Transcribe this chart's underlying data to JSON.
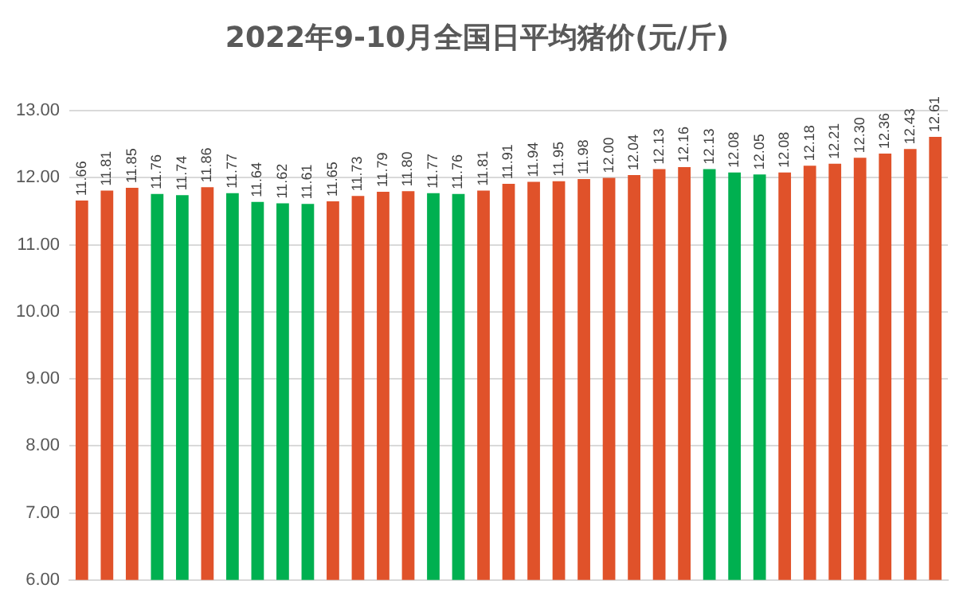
{
  "chart_data": {
    "type": "bar",
    "title": "2022年9-10月全国日平均猪价(元/斤)",
    "categories": [
      null,
      null,
      null,
      null,
      null,
      null,
      null,
      null,
      null,
      null,
      null,
      null,
      null,
      null,
      null,
      null,
      null,
      null,
      null,
      null,
      null,
      null,
      null,
      null,
      null,
      null,
      null,
      null,
      null,
      null,
      null,
      null,
      null,
      null,
      null
    ],
    "values": [
      11.66,
      11.81,
      11.85,
      11.76,
      11.74,
      11.86,
      11.77,
      11.64,
      11.62,
      11.61,
      11.65,
      11.73,
      11.79,
      11.8,
      11.77,
      11.76,
      11.81,
      11.91,
      11.94,
      11.95,
      11.98,
      12.0,
      12.04,
      12.13,
      12.16,
      12.13,
      12.08,
      12.05,
      12.08,
      12.18,
      12.21,
      12.3,
      12.36,
      12.43,
      12.61
    ],
    "colors": [
      "#e0522a",
      "#e0522a",
      "#e0522a",
      "#00b050",
      "#00b050",
      "#e0522a",
      "#00b050",
      "#00b050",
      "#00b050",
      "#00b050",
      "#e0522a",
      "#e0522a",
      "#e0522a",
      "#e0522a",
      "#00b050",
      "#00b050",
      "#e0522a",
      "#e0522a",
      "#e0522a",
      "#e0522a",
      "#e0522a",
      "#e0522a",
      "#e0522a",
      "#e0522a",
      "#e0522a",
      "#00b050",
      "#00b050",
      "#00b050",
      "#e0522a",
      "#e0522a",
      "#e0522a",
      "#e0522a",
      "#e0522a",
      "#e0522a",
      "#e0522a"
    ],
    "ylim": [
      6,
      13
    ],
    "yticks": [
      {
        "value": 6,
        "label": "6.00"
      },
      {
        "value": 7,
        "label": "7.00"
      },
      {
        "value": 8,
        "label": "8.00"
      },
      {
        "value": 9,
        "label": "9.00"
      },
      {
        "value": 10,
        "label": "10.00"
      },
      {
        "value": 11,
        "label": "11.00"
      },
      {
        "value": 12,
        "label": "12.00"
      },
      {
        "value": 13,
        "label": "13.00"
      }
    ],
    "value_labels": [
      "11.66",
      "11.81",
      "11.85",
      "11.76",
      "11.74",
      "11.86",
      "11.77",
      "11.64",
      "11.62",
      "11.61",
      "11.65",
      "11.73",
      "11.79",
      "11.80",
      "11.77",
      "11.76",
      "11.81",
      "11.91",
      "11.94",
      "11.95",
      "11.98",
      "12.00",
      "12.04",
      "12.13",
      "12.16",
      "12.13",
      "12.08",
      "12.05",
      "12.08",
      "12.18",
      "12.21",
      "12.30",
      "12.36",
      "12.43",
      "12.61"
    ],
    "grid": "y",
    "legend": false
  }
}
